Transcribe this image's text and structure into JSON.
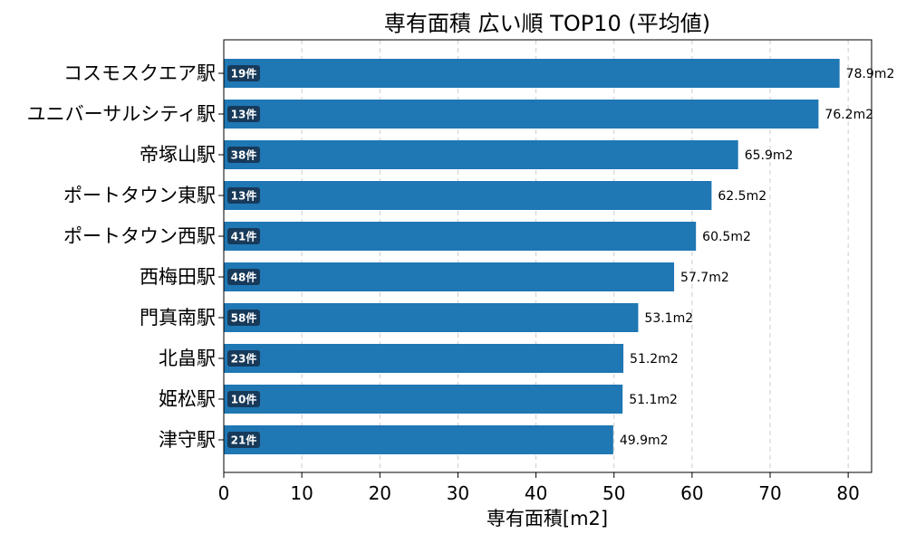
{
  "chart_data": {
    "type": "bar",
    "orientation": "horizontal",
    "title": "専有面積 広い順 TOP10 (平均値)",
    "xlabel": "専有面積[m2]",
    "ylabel": "",
    "xlim": [
      0,
      83
    ],
    "xticks": [
      "0",
      "10",
      "20",
      "30",
      "40",
      "50",
      "60",
      "70",
      "80"
    ],
    "grid": "x-dashed",
    "bar_color": "#1f77b4",
    "badge_color": "#173a5a",
    "categories": [
      "コスモスクエア駅",
      "ユニバーサルシティ駅",
      "帝塚山駅",
      "ポートタウン東駅",
      "ポートタウン西駅",
      "西梅田駅",
      "門真南駅",
      "北畠駅",
      "姫松駅",
      "津守駅"
    ],
    "values": [
      78.9,
      76.2,
      65.9,
      62.5,
      60.5,
      57.7,
      53.1,
      51.2,
      51.1,
      49.9
    ],
    "value_labels": [
      "78.9m2",
      "76.2m2",
      "65.9m2",
      "62.5m2",
      "60.5m2",
      "57.7m2",
      "53.1m2",
      "51.2m2",
      "51.1m2",
      "49.9m2"
    ],
    "counts": [
      "19件",
      "13件",
      "38件",
      "13件",
      "41件",
      "48件",
      "58件",
      "23件",
      "10件",
      "21件"
    ]
  }
}
